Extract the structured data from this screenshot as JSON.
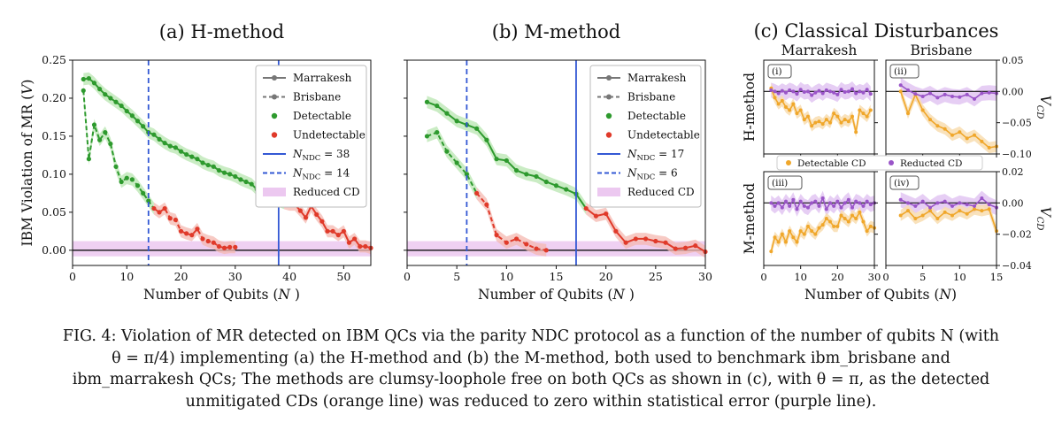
{
  "chart_data": [
    {
      "type": "line",
      "title": "(a) H-method",
      "xlabel": "Number of Qubits (N )",
      "ylabel": "IBM Violation of MR (V )",
      "xlim": [
        0,
        55
      ],
      "ylim": [
        -0.02,
        0.25
      ],
      "xticks": [
        "0",
        "10",
        "20",
        "30",
        "40",
        "50"
      ],
      "yticks": [
        "0.00",
        "0.05",
        "0.10",
        "0.15",
        "0.20",
        "0.25"
      ],
      "vlines": [
        {
          "label": "N_NDC = 38",
          "x": 38,
          "style": "solid"
        },
        {
          "label": "N_NDC = 14",
          "x": 14,
          "style": "dashed"
        }
      ],
      "reduced_cd_band": [
        -0.008,
        0.012
      ],
      "legend": [
        "Marrakesh",
        "Brisbane",
        "Detectable",
        "Undetectable",
        "N_NDC = 38",
        "N_NDC = 14",
        "Reduced CD"
      ],
      "legend_position": "top-right",
      "series": [
        {
          "name": "Marrakesh",
          "style": "solid",
          "x": [
            2,
            3,
            4,
            5,
            6,
            7,
            8,
            9,
            10,
            11,
            12,
            13,
            14,
            15,
            16,
            17,
            18,
            19,
            20,
            21,
            22,
            23,
            24,
            25,
            26,
            27,
            28,
            29,
            30,
            31,
            32,
            33,
            34,
            35,
            36,
            37,
            38,
            39,
            40,
            41,
            42,
            43,
            44,
            45,
            46,
            47,
            48,
            49,
            50,
            51,
            52,
            53,
            54,
            55
          ],
          "y": [
            0.225,
            0.226,
            0.22,
            0.212,
            0.205,
            0.2,
            0.195,
            0.19,
            0.183,
            0.177,
            0.17,
            0.163,
            0.155,
            0.152,
            0.146,
            0.141,
            0.137,
            0.135,
            0.13,
            0.126,
            0.123,
            0.12,
            0.115,
            0.112,
            0.11,
            0.105,
            0.102,
            0.1,
            0.097,
            0.093,
            0.09,
            0.087,
            0.08,
            0.075,
            0.073,
            0.07,
            0.065,
            0.062,
            0.06,
            0.06,
            0.052,
            0.043,
            0.058,
            0.047,
            0.038,
            0.025,
            0.025,
            0.02,
            0.025,
            0.01,
            0.015,
            0.005,
            0.005,
            0.003
          ]
        },
        {
          "name": "Brisbane",
          "style": "dashed",
          "x": [
            2,
            3,
            4,
            5,
            6,
            7,
            8,
            9,
            10,
            11,
            12,
            13,
            14,
            15,
            16,
            17,
            18,
            19,
            20,
            21,
            22,
            23,
            24,
            25,
            26,
            27,
            28,
            29,
            30
          ],
          "y": [
            0.21,
            0.12,
            0.165,
            0.145,
            0.155,
            0.14,
            0.11,
            0.09,
            0.095,
            0.093,
            0.085,
            0.075,
            0.065,
            0.055,
            0.05,
            0.055,
            0.042,
            0.04,
            0.025,
            0.022,
            0.02,
            0.028,
            0.015,
            0.012,
            0.01,
            0.005,
            0.003,
            0.004,
            0.004
          ]
        }
      ],
      "detectable_up_to_marrakesh": 38,
      "detectable_up_to_brisbane": 14
    },
    {
      "type": "line",
      "title": "(b) M-method",
      "xlabel": "Number of Qubits (N )",
      "ylabel": "",
      "xlim": [
        0,
        30
      ],
      "ylim": [
        -0.02,
        0.25
      ],
      "xticks": [
        "0",
        "5",
        "10",
        "15",
        "20",
        "25",
        "30"
      ],
      "vlines": [
        {
          "label": "N_NDC = 17",
          "x": 17,
          "style": "solid"
        },
        {
          "label": "N_NDC = 6",
          "x": 6,
          "style": "dashed"
        }
      ],
      "reduced_cd_band": [
        -0.008,
        0.012
      ],
      "legend": [
        "Marrakesh",
        "Brisbane",
        "Detectable",
        "Undetectable",
        "N_NDC = 17",
        "N_NDC = 6",
        "Reduced CD"
      ],
      "legend_position": "top-right",
      "series": [
        {
          "name": "Marrakesh",
          "style": "solid",
          "x": [
            2,
            3,
            4,
            5,
            6,
            7,
            8,
            9,
            10,
            11,
            12,
            13,
            14,
            15,
            16,
            17,
            18,
            19,
            20,
            21,
            22,
            23,
            24,
            25,
            26,
            27,
            28,
            29,
            30
          ],
          "y": [
            0.195,
            0.19,
            0.18,
            0.17,
            0.165,
            0.16,
            0.145,
            0.12,
            0.118,
            0.105,
            0.1,
            0.097,
            0.09,
            0.085,
            0.08,
            0.074,
            0.055,
            0.045,
            0.048,
            0.025,
            0.01,
            0.015,
            0.015,
            0.012,
            0.01,
            0.002,
            0.003,
            0.006,
            -0.002
          ]
        },
        {
          "name": "Brisbane",
          "style": "dashed",
          "x": [
            2,
            3,
            4,
            5,
            6,
            7,
            8,
            9,
            10,
            11,
            12,
            13,
            14
          ],
          "y": [
            0.15,
            0.155,
            0.13,
            0.115,
            0.1,
            0.075,
            0.06,
            0.02,
            0.01,
            0.015,
            0.008,
            0.002,
            0.0
          ]
        }
      ],
      "detectable_up_to_marrakesh": 17,
      "detectable_up_to_brisbane": 6
    },
    {
      "type": "line",
      "title": "(c) Classical Disturbances",
      "column_titles": [
        "Marrakesh",
        "Brisbane"
      ],
      "row_labels": [
        "H-method",
        "M-method"
      ],
      "xlabel": "Number of Qubits (N )",
      "ylabel_right": "V_CD",
      "legend": [
        "Detectable CD",
        "Reducted CD"
      ],
      "panels": [
        {
          "id": "(i)",
          "machine": "Marrakesh",
          "method": "H-method",
          "xlim": [
            0,
            30
          ],
          "ylim": [
            -0.1,
            0.05
          ],
          "detectable": [
            0.005,
            -0.01,
            -0.02,
            -0.015,
            -0.025,
            -0.03,
            -0.02,
            -0.035,
            -0.03,
            -0.045,
            -0.04,
            -0.055,
            -0.05,
            -0.048,
            -0.052,
            -0.045,
            -0.05,
            -0.035,
            -0.04,
            -0.05,
            -0.045,
            -0.048,
            -0.04,
            -0.065,
            -0.03,
            -0.035,
            -0.04,
            -0.03
          ],
          "reduced": [
            0.002,
            0.0,
            -0.003,
            0.001,
            -0.002,
            0.002,
            0.0,
            -0.004,
            0.003,
            -0.001,
            0.0,
            -0.006,
            -0.002,
            0.001,
            -0.003,
            0.002,
            0.0,
            -0.002,
            -0.005,
            0.003,
            -0.001,
            0.0,
            0.004,
            -0.003,
            0.0,
            -0.002,
            0.003,
            -0.004
          ]
        },
        {
          "id": "(ii)",
          "machine": "Brisbane",
          "method": "H-method",
          "xlim": [
            0,
            15
          ],
          "ylim": [
            -0.1,
            0.05
          ],
          "detectable": [
            0.0,
            -0.035,
            -0.005,
            -0.03,
            -0.045,
            -0.055,
            -0.06,
            -0.07,
            -0.065,
            -0.075,
            -0.07,
            -0.08,
            -0.09,
            -0.088
          ],
          "reduced": [
            0.01,
            0.002,
            -0.004,
            -0.008,
            -0.003,
            -0.01,
            -0.005,
            -0.008,
            -0.009,
            -0.005,
            -0.012,
            -0.003,
            -0.002,
            -0.003
          ]
        },
        {
          "id": "(iii)",
          "machine": "Marrakesh",
          "method": "M-method",
          "xlim": [
            0,
            30
          ],
          "ylim": [
            -0.04,
            0.02
          ],
          "detectable": [
            -0.031,
            -0.022,
            -0.025,
            -0.02,
            -0.025,
            -0.018,
            -0.022,
            -0.025,
            -0.018,
            -0.02,
            -0.015,
            -0.018,
            -0.02,
            -0.016,
            -0.014,
            -0.01,
            -0.012,
            -0.015,
            -0.015,
            -0.008,
            -0.01,
            -0.012,
            -0.008,
            -0.01,
            -0.006,
            -0.012,
            -0.018,
            -0.015,
            -0.016
          ],
          "reduced": [
            0.0,
            -0.002,
            0.0,
            -0.003,
            0.001,
            -0.002,
            0.002,
            -0.004,
            0.001,
            -0.002,
            -0.003,
            0.0,
            0.001,
            -0.002,
            0.003,
            -0.004,
            0.0,
            -0.002,
            0.001,
            -0.003,
            0.0,
            0.002,
            -0.003,
            0.001,
            0.0,
            -0.002,
            0.001,
            -0.001,
            0.0
          ]
        },
        {
          "id": "(iv)",
          "machine": "Brisbane",
          "method": "M-method",
          "xlim": [
            0,
            15
          ],
          "ylim": [
            -0.04,
            0.02
          ],
          "detectable": [
            -0.008,
            -0.005,
            -0.01,
            -0.008,
            -0.005,
            -0.01,
            -0.006,
            -0.008,
            -0.005,
            -0.007,
            -0.004,
            -0.005,
            -0.004,
            -0.018
          ],
          "reduced": [
            0.002,
            0.0,
            -0.002,
            0.001,
            -0.003,
            0.0,
            0.001,
            -0.002,
            0.0,
            -0.001,
            -0.002,
            0.003,
            -0.001,
            -0.003
          ]
        }
      ]
    }
  ],
  "labels": {
    "a_xlabel": "Number of Qubits (N )",
    "b_xlabel": "Number of Qubits (N )",
    "c_xlabel": "Number of Qubits (N )",
    "ylabel": "IBM Violation of MR (V )",
    "vcd": "V",
    "vcd_sub": "CD"
  },
  "caption": {
    "line1": "FIG. 4: Violation of MR detected on IBM QCs via the parity NDC protocol as a function of the number of qubits N (with",
    "line2": "θ = π/4) implementing (a) the H-method and (b) the M-method, both used to benchmark ibm_brisbane and",
    "line3": "ibm_marrakesh QCs; The methods are clumsy-loophole free on both QCs as shown in (c), with θ = π, as the detected",
    "line4": "unmitigated CDs (orange line) was reduced to zero within statistical error (purple line)."
  },
  "colors": {
    "detectable": "#2e9a2e",
    "detectable_band": "#b8e6b0",
    "undetectable": "#e03a2a",
    "undetectable_band": "#f4b8b0",
    "vline": "#3358d4",
    "reduced_cd": "#ecc8f0",
    "cd_detectable": "#f0a72b",
    "cd_reduced": "#9a55c8"
  }
}
